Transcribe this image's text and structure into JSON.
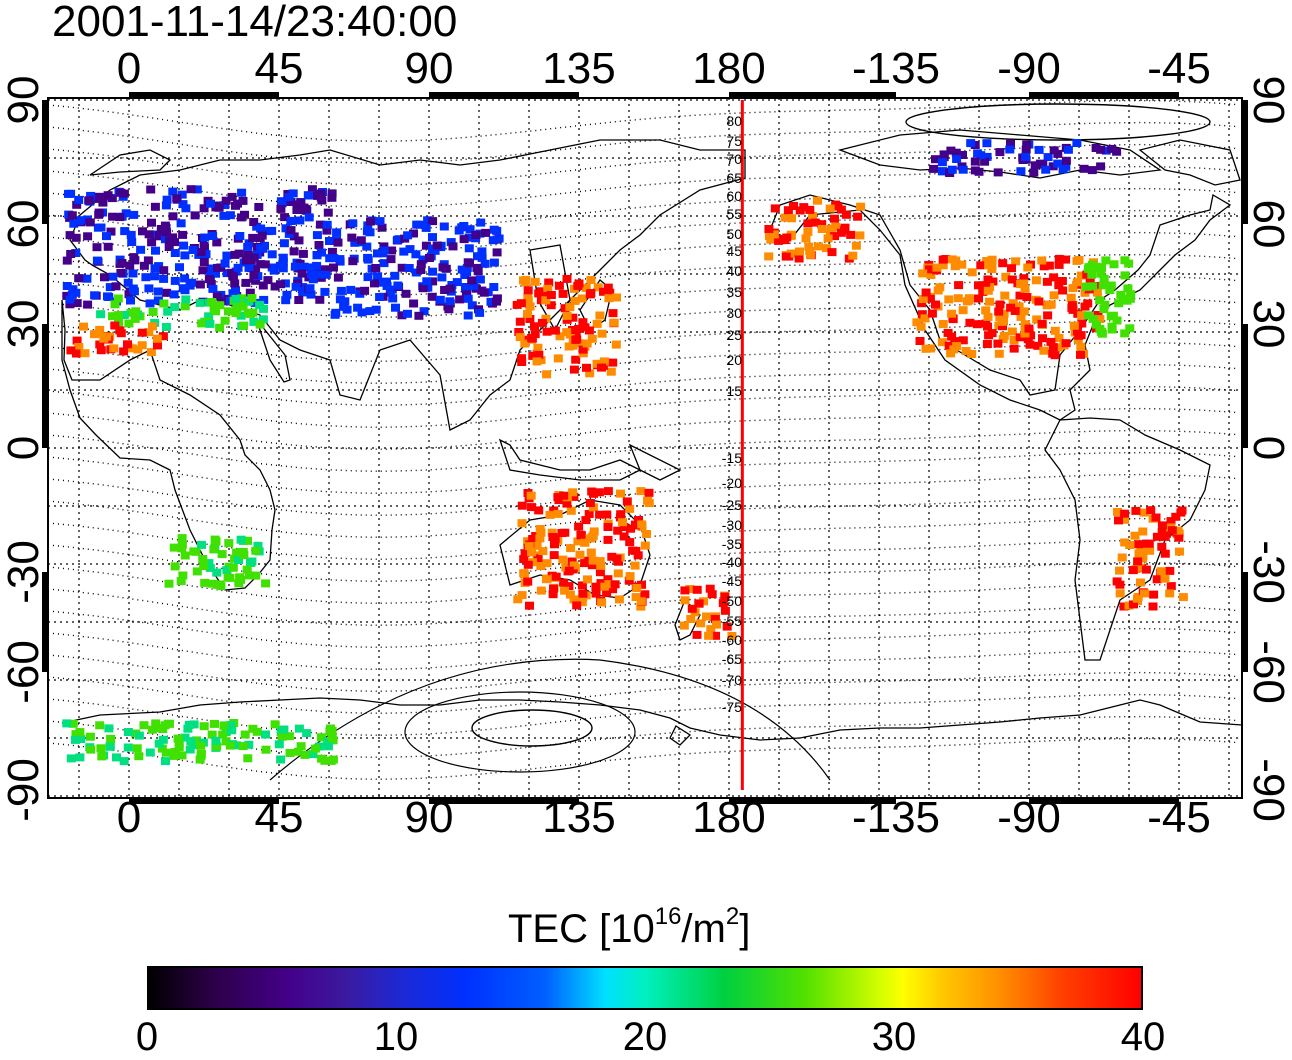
{
  "title": "2001-11-14/23:40:00",
  "lon_ticks": [
    "0",
    "45",
    "90",
    "135",
    "180",
    "-135",
    "-90",
    "-45"
  ],
  "lat_ticks": [
    "90",
    "60",
    "30",
    "0",
    "-30",
    "-60",
    "-90"
  ],
  "contour_labels": [
    "80",
    "75",
    "70",
    "65",
    "60",
    "55",
    "50",
    "45",
    "40",
    "35",
    "30",
    "25",
    "20",
    "15",
    "-15",
    "-20",
    "-25",
    "-30",
    "-35",
    "-40",
    "-45",
    "-50",
    "-55",
    "-60",
    "-65",
    "-70",
    "-75"
  ],
  "colorbar": {
    "title_main": "TEC  [10",
    "title_exp1": "16",
    "title_mid": "/m",
    "title_exp2": "2",
    "title_end": "]",
    "ticks": [
      "0",
      "10",
      "20",
      "30",
      "40"
    ],
    "range": [
      0,
      40
    ]
  },
  "colors": {
    "high_tec": "#ff0000",
    "terminator": "#ff0000"
  },
  "chart_data": {
    "type": "map",
    "lon_axis": [
      0,
      45,
      90,
      135,
      180,
      -135,
      -90,
      -45
    ],
    "lat_axis": [
      90,
      60,
      30,
      0,
      -30,
      -60,
      -90
    ],
    "terminator_lon": -176,
    "tec_regions": [
      {
        "lon_range": [
          -20,
          60
        ],
        "lat_range": [
          38,
          68
        ],
        "tec": 10
      },
      {
        "lon_range": [
          60,
          110
        ],
        "lat_range": [
          35,
          60
        ],
        "tec": 11
      },
      {
        "lon_range": [
          -10,
          40
        ],
        "lat_range": [
          32,
          40
        ],
        "tec": 22
      },
      {
        "lon_range": [
          -20,
          10
        ],
        "lat_range": [
          25,
          33
        ],
        "tec": 40
      },
      {
        "lon_range": [
          10,
          40
        ],
        "lat_range": [
          -35,
          -22
        ],
        "tec": 24
      },
      {
        "lon_range": [
          115,
          145
        ],
        "lat_range": [
          20,
          45
        ],
        "tec": 40
      },
      {
        "lon_range": [
          115,
          155
        ],
        "lat_range": [
          -40,
          -10
        ],
        "tec": 40
      },
      {
        "lon_range": [
          165,
          180
        ],
        "lat_range": [
          -48,
          -35
        ],
        "tec": 40
      },
      {
        "lon_range": [
          -125,
          -70
        ],
        "lat_range": [
          25,
          50
        ],
        "tec": 40
      },
      {
        "lon_range": [
          -75,
          -60
        ],
        "lat_range": [
          30,
          50
        ],
        "tec": 25
      },
      {
        "lon_range": [
          -170,
          -140
        ],
        "lat_range": [
          50,
          65
        ],
        "tec": 40
      },
      {
        "lon_range": [
          -65,
          -45
        ],
        "lat_range": [
          -40,
          -15
        ],
        "tec": 40
      },
      {
        "lon_range": [
          -120,
          -65
        ],
        "lat_range": [
          72,
          80
        ],
        "tec": 9
      },
      {
        "lon_range": [
          -20,
          60
        ],
        "lat_range": [
          -80,
          -70
        ],
        "tec": 22
      }
    ]
  }
}
